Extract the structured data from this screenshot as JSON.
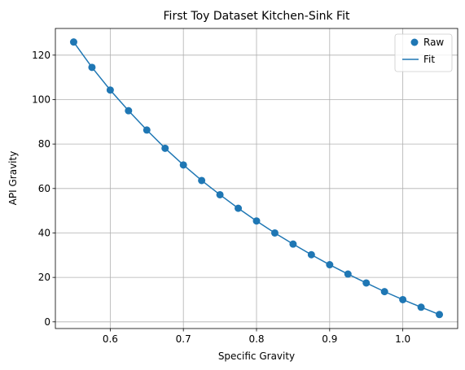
{
  "chart_data": {
    "type": "scatter",
    "title": "First Toy Dataset Kitchen-Sink Fit",
    "xlabel": "Specific Gravity",
    "ylabel": "API Gravity",
    "xlim": [
      0.525,
      1.075
    ],
    "ylim": [
      -3,
      132
    ],
    "xticks": [
      0.6,
      0.7,
      0.8,
      0.9,
      1.0
    ],
    "xtick_labels": [
      "0.6",
      "0.7",
      "0.8",
      "0.9",
      "1.0"
    ],
    "yticks": [
      0,
      20,
      40,
      60,
      80,
      100,
      120
    ],
    "ytick_labels": [
      "0",
      "20",
      "40",
      "60",
      "80",
      "100",
      "120"
    ],
    "grid": true,
    "legend_position": "top-right",
    "color": "#1f77b4",
    "series": [
      {
        "name": "Raw",
        "kind": "scatter",
        "x": [
          0.55,
          0.575,
          0.6,
          0.625,
          0.65,
          0.675,
          0.7,
          0.725,
          0.75,
          0.775,
          0.8,
          0.825,
          0.85,
          0.875,
          0.9,
          0.925,
          0.95,
          0.975,
          1.0,
          1.025,
          1.05
        ],
        "y": [
          125.9,
          114.5,
          104.3,
          95.0,
          86.3,
          78.1,
          70.6,
          63.6,
          57.2,
          51.1,
          45.4,
          40.0,
          35.0,
          30.2,
          25.7,
          21.5,
          17.5,
          13.6,
          10.0,
          6.6,
          3.3
        ]
      },
      {
        "name": "Fit",
        "kind": "line",
        "x": [
          0.55,
          0.575,
          0.6,
          0.625,
          0.65,
          0.675,
          0.7,
          0.725,
          0.75,
          0.775,
          0.8,
          0.825,
          0.85,
          0.875,
          0.9,
          0.925,
          0.95,
          0.975,
          1.0,
          1.025,
          1.05
        ],
        "y": [
          125.9,
          114.5,
          104.3,
          95.0,
          86.3,
          78.1,
          70.6,
          63.6,
          57.2,
          51.1,
          45.4,
          40.0,
          35.0,
          30.2,
          25.7,
          21.5,
          17.5,
          13.6,
          10.0,
          6.6,
          3.3
        ]
      }
    ]
  }
}
